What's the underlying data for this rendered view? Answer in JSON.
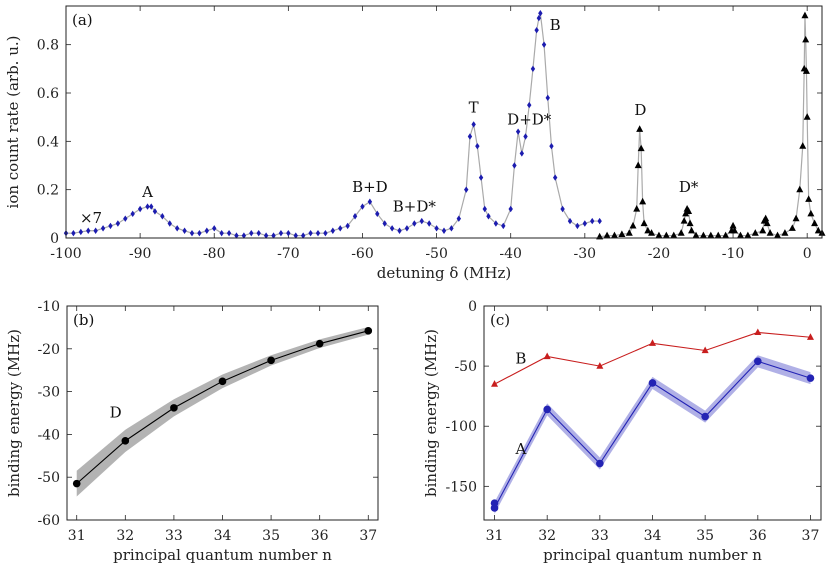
{
  "chart_data": [
    {
      "type": "scatter",
      "panel_label": "(a)",
      "xlabel": "detuning δ (MHz)",
      "ylabel": "ion count rate (arb. u.)",
      "xlim": [
        -100,
        2
      ],
      "ylim": [
        0,
        0.96
      ],
      "xticks": [
        -100,
        -90,
        -80,
        -70,
        -60,
        -50,
        -40,
        -30,
        -20,
        -10,
        0
      ],
      "yticks": [
        0,
        0.2,
        0.4,
        0.6,
        0.8
      ],
      "scale_note": "×7",
      "series": [
        {
          "color": "#1c1caf",
          "marker": "diamond",
          "x": [
            -100,
            -99,
            -98,
            -97,
            -96,
            -95,
            -94,
            -93,
            -92,
            -91,
            -90,
            -89,
            -88.5,
            -88,
            -87,
            -86,
            -85,
            -84,
            -83,
            -82,
            -81,
            -80,
            -79,
            -78,
            -77,
            -76,
            -75,
            -74,
            -73,
            -72,
            -71,
            -70,
            -69,
            -68,
            -67,
            -66,
            -65,
            -64,
            -63,
            -62,
            -61,
            -60,
            -59,
            -58,
            -57,
            -56,
            -55,
            -54,
            -53,
            -52,
            -51,
            -50,
            -49,
            -48,
            -47,
            -46,
            -45.5,
            -45,
            -44.5,
            -44,
            -43.5,
            -43,
            -42,
            -41,
            -40,
            -39.5,
            -39,
            -38.5,
            -38,
            -37.5,
            -37,
            -36.5,
            -36.2,
            -36,
            -35.5,
            -35,
            -34.5,
            -34,
            -33,
            -32,
            -31,
            -30,
            -29,
            -28
          ],
          "y": [
            0.02,
            0.02,
            0.025,
            0.03,
            0.03,
            0.04,
            0.05,
            0.06,
            0.08,
            0.1,
            0.12,
            0.13,
            0.13,
            0.11,
            0.09,
            0.06,
            0.04,
            0.03,
            0.02,
            0.02,
            0.03,
            0.04,
            0.02,
            0.02,
            0.01,
            0.01,
            0.02,
            0.02,
            0.01,
            0.01,
            0.02,
            0.02,
            0.01,
            0.01,
            0.02,
            0.02,
            0.02,
            0.03,
            0.04,
            0.05,
            0.09,
            0.13,
            0.15,
            0.1,
            0.06,
            0.04,
            0.03,
            0.04,
            0.06,
            0.07,
            0.06,
            0.04,
            0.03,
            0.04,
            0.08,
            0.2,
            0.42,
            0.47,
            0.38,
            0.25,
            0.12,
            0.09,
            0.06,
            0.05,
            0.12,
            0.3,
            0.44,
            0.35,
            0.42,
            0.55,
            0.7,
            0.86,
            0.91,
            0.93,
            0.8,
            0.58,
            0.38,
            0.25,
            0.12,
            0.07,
            0.05,
            0.06,
            0.07,
            0.07
          ]
        },
        {
          "color": "#000000",
          "marker": "triangle",
          "x": [
            -28,
            -27,
            -26,
            -25,
            -24,
            -23.5,
            -23,
            -22.8,
            -22.6,
            -22.4,
            -22.2,
            -22,
            -21.5,
            -21,
            -20,
            -19,
            -18,
            -17,
            -16.6,
            -16.4,
            -16.2,
            -16,
            -15.8,
            -15.6,
            -15,
            -14,
            -13,
            -12,
            -11,
            -10.2,
            -10,
            -9.8,
            -9,
            -8,
            -7,
            -6,
            -5.8,
            -5.6,
            -5.4,
            -5,
            -4,
            -3,
            -2,
            -1.5,
            -1,
            -0.6,
            -0.4,
            -0.3,
            -0.2,
            -0.1,
            0,
            0.2,
            0.5,
            1,
            1.5,
            2
          ],
          "y": [
            0.005,
            0.01,
            0.01,
            0.015,
            0.02,
            0.05,
            0.12,
            0.3,
            0.45,
            0.37,
            0.15,
            0.06,
            0.03,
            0.02,
            0.01,
            0.01,
            0.01,
            0.02,
            0.07,
            0.1,
            0.12,
            0.11,
            0.06,
            0.03,
            0.01,
            0.01,
            0.01,
            0.01,
            0.01,
            0.03,
            0.05,
            0.03,
            0.01,
            0.01,
            0.02,
            0.03,
            0.07,
            0.08,
            0.06,
            0.02,
            0.01,
            0.02,
            0.04,
            0.08,
            0.2,
            0.38,
            0.7,
            0.92,
            0.82,
            0.69,
            0.5,
            0.16,
            0.1,
            0.06,
            0.03,
            0.02
          ]
        }
      ],
      "annotations": [
        {
          "text": "A",
          "x": -89,
          "y": 0.17
        },
        {
          "text": "B+D",
          "x": -59,
          "y": 0.19
        },
        {
          "text": "B+D*",
          "x": -53,
          "y": 0.11
        },
        {
          "text": "T",
          "x": -45,
          "y": 0.52
        },
        {
          "text": "D+D*",
          "x": -37.5,
          "y": 0.47
        },
        {
          "text": "B",
          "x": -34,
          "y": 0.86
        },
        {
          "text": "D",
          "x": -22.5,
          "y": 0.51
        },
        {
          "text": "D*",
          "x": -16,
          "y": 0.19
        }
      ]
    },
    {
      "type": "line",
      "panel_label": "(b)",
      "xlabel": "principal quantum number n",
      "ylabel": "binding energy (MHz)",
      "xlim": [
        30.8,
        37.2
      ],
      "ylim": [
        -60,
        -10
      ],
      "xticks": [
        31,
        32,
        33,
        34,
        35,
        36,
        37
      ],
      "yticks": [
        -60,
        -50,
        -40,
        -30,
        -20,
        -10
      ],
      "series": [
        {
          "name": "D",
          "color": "#000000",
          "x": [
            31,
            32,
            33,
            34,
            35,
            36,
            37
          ],
          "values": [
            -51.5,
            -41.5,
            -33.8,
            -27.6,
            -22.7,
            -18.8,
            -15.8
          ],
          "band_half_width": [
            3,
            2.6,
            2,
            1.6,
            1.2,
            1,
            0.9
          ]
        }
      ],
      "annotations": [
        {
          "text": "D",
          "x": 31.8,
          "y": -36
        }
      ]
    },
    {
      "type": "line",
      "panel_label": "(c)",
      "xlabel": "principal quantum number n",
      "ylabel": "binding energy (MHz)",
      "xlim": [
        30.8,
        37.2
      ],
      "ylim": [
        -178,
        0
      ],
      "xticks": [
        31,
        32,
        33,
        34,
        35,
        36,
        37
      ],
      "yticks": [
        0,
        -50,
        -100,
        -150
      ],
      "series": [
        {
          "name": "B",
          "color": "#c81e1e",
          "marker": "triangle",
          "x": [
            31,
            32,
            33,
            34,
            35,
            36,
            37
          ],
          "values": [
            -65,
            -42,
            -50,
            -31,
            -37,
            -22,
            -26
          ]
        },
        {
          "name": "A",
          "color": "#2323b4",
          "marker": "circle",
          "x": [
            31,
            32,
            33,
            34,
            35,
            36,
            37
          ],
          "values": [
            -168,
            -86,
            -131,
            -64,
            -92,
            -46,
            -60
          ],
          "extra_points": {
            "x": [
              31
            ],
            "y": [
              -164
            ]
          }
        }
      ],
      "annotations": [
        {
          "text": "B",
          "x": 31.5,
          "y": -48
        },
        {
          "text": "A",
          "x": 31.5,
          "y": -123
        }
      ]
    }
  ]
}
